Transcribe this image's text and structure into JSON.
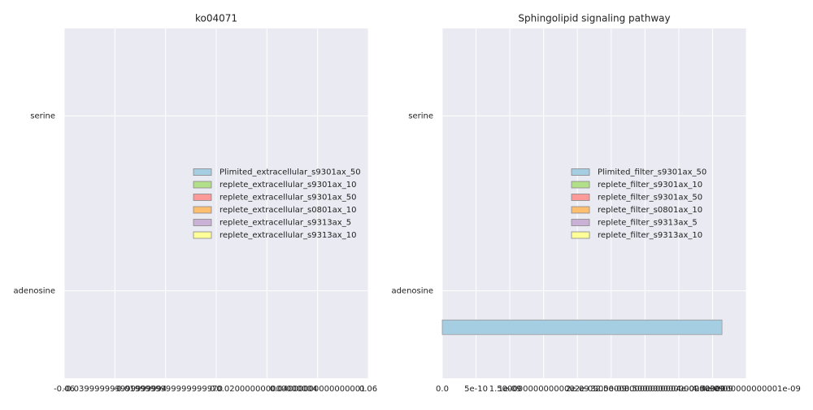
{
  "chart_data": [
    {
      "type": "barh",
      "title": "ko04071",
      "categories": [
        "adenosine",
        "serine"
      ],
      "series": [
        {
          "name": "Plimited_extracellular_s9301ax_50",
          "color": "#a6cee3",
          "values": [
            0,
            0
          ]
        },
        {
          "name": "replete_extracellular_s9301ax_10",
          "color": "#b2df8a",
          "values": [
            0,
            0
          ]
        },
        {
          "name": "replete_extracellular_s9301ax_50",
          "color": "#fb9a99",
          "values": [
            0,
            0
          ]
        },
        {
          "name": "replete_extracellular_s0801ax_10",
          "color": "#fdbf6f",
          "values": [
            0,
            0
          ]
        },
        {
          "name": "replete_extracellular_s9313ax_5",
          "color": "#cab2d6",
          "values": [
            0,
            0
          ]
        },
        {
          "name": "replete_extracellular_s9313ax_10",
          "color": "#ffff99",
          "values": [
            0,
            0
          ]
        }
      ],
      "xlim": [
        -0.06,
        0.06
      ],
      "xticks": [
        -0.06,
        {
          "value": -0.04,
          "label": "-0.039999999999999994"
        },
        {
          "value": -0.02,
          "label": "-0.019999999999999997"
        },
        {
          "value": 0,
          "label": "0.0"
        },
        {
          "value": 0.02,
          "label": "0.020000000000000004"
        },
        {
          "value": 0.04,
          "label": "0.04000000000000001"
        },
        0.06
      ],
      "grid": true,
      "legend": "center right"
    },
    {
      "type": "barh",
      "title": "Sphingolipid signaling pathway",
      "categories": [
        "adenosine",
        "serine"
      ],
      "series": [
        {
          "name": "Plimited_filter_s9301ax_50",
          "color": "#a6cee3",
          "values": [
            4.14e-09,
            0
          ]
        },
        {
          "name": "replete_filter_s9301ax_10",
          "color": "#b2df8a",
          "values": [
            0,
            0
          ]
        },
        {
          "name": "replete_filter_s9301ax_50",
          "color": "#fb9a99",
          "values": [
            0,
            0
          ]
        },
        {
          "name": "replete_filter_s0801ax_10",
          "color": "#fdbf6f",
          "values": [
            0,
            0
          ]
        },
        {
          "name": "replete_filter_s9313ax_5",
          "color": "#cab2d6",
          "values": [
            0,
            0
          ]
        },
        {
          "name": "replete_filter_s9313ax_10",
          "color": "#ffff99",
          "values": [
            0,
            0
          ]
        }
      ],
      "xlim": [
        0,
        4.5e-09
      ],
      "xticks": [
        {
          "value": 0,
          "label": "0.0"
        },
        5e-10,
        {
          "value": 1e-09,
          "label": "1e-09"
        },
        {
          "value": 1.5e-09,
          "label": "1.5000000000000002e-09"
        },
        {
          "value": 2e-09,
          "label": "2e-09"
        },
        {
          "value": 2.5e-09,
          "label": "2.5e-09"
        },
        {
          "value": 3e-09,
          "label": "3.0000000000000004e-09"
        },
        {
          "value": 3.5e-09,
          "label": "3.5000000000000003e-09"
        },
        {
          "value": 4e-09,
          "label": "4e-09"
        },
        {
          "value": 4.5e-09,
          "label": "4.5000000000000001e-09"
        }
      ],
      "grid": true,
      "legend": "center right"
    }
  ]
}
